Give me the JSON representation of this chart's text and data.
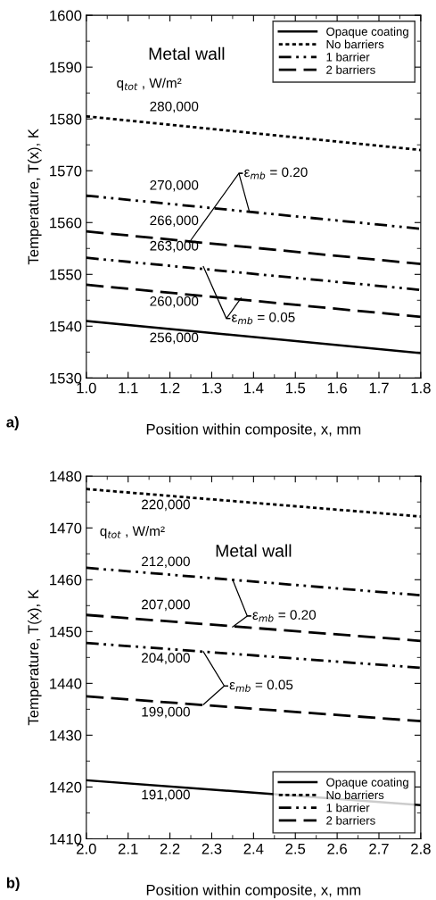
{
  "chart_data": [
    {
      "type": "line",
      "x": [
        1.0,
        1.8
      ],
      "xlim": [
        1.0,
        1.8
      ],
      "ylim": [
        1530,
        1600
      ],
      "xticks": [
        {
          "value": 1.0,
          "label": "1.0"
        },
        1.1,
        1.2,
        1.3,
        1.4,
        1.5,
        1.6,
        1.7,
        1.8
      ],
      "yticks": [
        1530,
        1540,
        1550,
        1560,
        1570,
        1580,
        1590,
        1600
      ],
      "xlabel": "Position within composite, x, mm",
      "ylabel": "Temperature, T(x), K",
      "legend": "top right",
      "grid": false,
      "series": [
        {
          "name": "Opaque coating",
          "color": "#000000",
          "line_style": "solid",
          "values": [
            1541.0,
            1534.8
          ]
        },
        {
          "name": "No barriers",
          "color": "#000000",
          "line_style": "dotted",
          "values": [
            1580.5,
            1574.0
          ]
        },
        {
          "name": "1 barrier",
          "color": "#000000",
          "line_style": "dashdot",
          "values": [
            1565.2,
            1558.8
          ]
        },
        {
          "name": "2 barriers",
          "color": "#000000",
          "line_style": "dashed",
          "values": [
            1558.3,
            1552.0
          ]
        },
        {
          "color": "#000000",
          "line_style": "dashdot",
          "values": [
            1553.2,
            1547.0
          ]
        },
        {
          "color": "#000000",
          "line_style": "dashed",
          "values": [
            1548.0,
            1541.8
          ]
        }
      ],
      "annotations": [
        "a)",
        "Metal wall",
        "q$_{tot}$ , W/m²",
        "280,000",
        "270,000",
        "266,000",
        "263,000",
        "260,000",
        "256,000",
        {
          "text": "ε$_{mb}$ = 0.20",
          "x": 1.39,
          "y": 1562.1
        },
        {
          "text": "ε$_{mb}$ = 0.05",
          "x": 1.28,
          "y": 1551.5
        }
      ]
    },
    {
      "type": "line",
      "x": [
        2.0,
        2.8
      ],
      "xlim": [
        2.0,
        2.8
      ],
      "ylim": [
        1410,
        1480
      ],
      "xticks": [
        {
          "value": 2.0,
          "label": "2.0"
        },
        2.1,
        2.2,
        2.3,
        2.4,
        2.5,
        2.6,
        2.7,
        2.8
      ],
      "yticks": [
        1410,
        1420,
        1430,
        1440,
        1450,
        1460,
        1470,
        1480
      ],
      "xlabel": "Position within composite, x, mm",
      "ylabel": "Temperature, T(x), K",
      "legend": "bottom right",
      "grid": false,
      "series": [
        {
          "name": "Opaque coating",
          "color": "#000000",
          "line_style": "solid",
          "values": [
            1421.3,
            1416.5
          ]
        },
        {
          "name": "No barriers",
          "color": "#000000",
          "line_style": "dotted",
          "values": [
            1477.5,
            1472.2
          ]
        },
        {
          "name": "1 barrier",
          "color": "#000000",
          "line_style": "dashdot",
          "values": [
            1462.3,
            1457.0
          ]
        },
        {
          "name": "2 barriers",
          "color": "#000000",
          "line_style": "dashed",
          "values": [
            1453.2,
            1448.2
          ]
        },
        {
          "color": "#000000",
          "line_style": "dashdot",
          "values": [
            1447.8,
            1443.0
          ]
        },
        {
          "color": "#000000",
          "line_style": "dashed",
          "values": [
            1437.5,
            1432.7
          ]
        }
      ],
      "annotations": [
        "b)",
        "Metal wall",
        "q$_{tot}$ , W/m²",
        "220,000",
        "212,000",
        "207,000",
        "204,000",
        "199,000",
        "191,000",
        {
          "text": "ε$_{mb}$ = 0.20",
          "x": 2.35,
          "y": 1460.0
        },
        {
          "text": "ε$_{mb}$ = 0.05",
          "x": 2.28,
          "y": 1446.1
        }
      ]
    }
  ]
}
